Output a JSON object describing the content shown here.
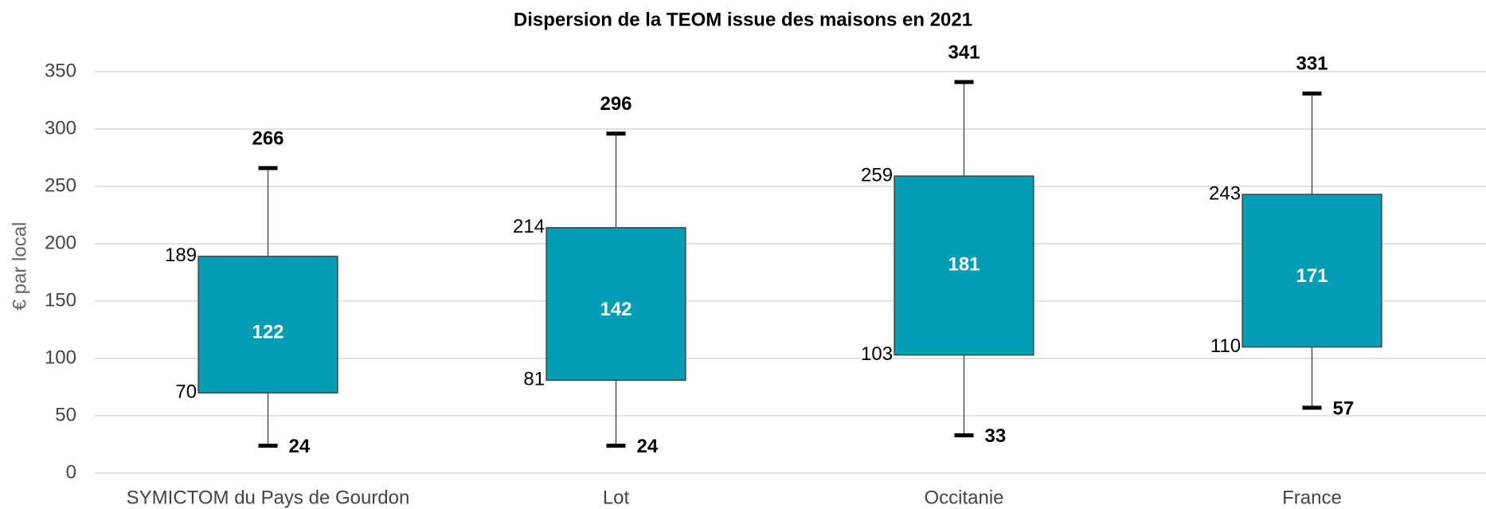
{
  "chart_data": {
    "type": "box",
    "title": "Dispersion de la TEOM issue des maisons en 2021",
    "y_label": "€ par local",
    "categories": [
      "SYMICTOM du Pays de Gourdon",
      "Lot",
      "Occitanie",
      "France"
    ],
    "min": [
      24,
      24,
      33,
      57
    ],
    "q1": [
      70,
      81,
      103,
      110
    ],
    "median": [
      122,
      142,
      181,
      171
    ],
    "q3": [
      189,
      214,
      259,
      243
    ],
    "max": [
      266,
      296,
      341,
      331
    ],
    "color": "#049db5",
    "ylim": [
      0,
      350
    ],
    "yticks": [
      0,
      50,
      100,
      150,
      200,
      250,
      300,
      350
    ],
    "grid": true
  }
}
